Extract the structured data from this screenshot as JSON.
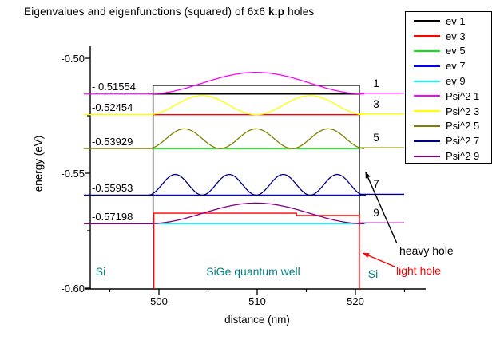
{
  "title": {
    "prefix": "Eigenvalues and eigenfunctions (squared) of 6x6 ",
    "bold": "k.p",
    "suffix": " holes",
    "full": "Eigenvalues and eigenfunctions (squared) of 6x6 k.p holes"
  },
  "axes": {
    "x": {
      "label": "distance (nm)",
      "tick_labels": [
        "500",
        "510",
        "520"
      ],
      "tick_values_nm": [
        500,
        510,
        520
      ],
      "minor_ticks_nm": [
        495,
        505,
        515,
        525
      ],
      "range_nm": [
        492.5,
        527.2
      ]
    },
    "y": {
      "label": "energy (eV)",
      "tick_labels": [
        "-0.50",
        "-0.55",
        "-0.60"
      ],
      "tick_values_eV": [
        -0.5,
        -0.55,
        -0.6
      ],
      "minor_ticks_eV": [
        -0.525,
        -0.575
      ],
      "range_eV": [
        -0.6,
        -0.495
      ]
    }
  },
  "regions": {
    "left": "Si",
    "center": "SiGe quantum well",
    "right": "Si"
  },
  "annotations": {
    "heavy_hole": "heavy hole",
    "light_hole": "light hole"
  },
  "legend": {
    "position": "top-right",
    "items": [
      {
        "label": "ev 1",
        "color": "#000000"
      },
      {
        "label": "ev 3",
        "color": "#ff0000"
      },
      {
        "label": "ev 5",
        "color": "#00ee00"
      },
      {
        "label": "ev 7",
        "color": "#0000ff"
      },
      {
        "label": "ev 9",
        "color": "#00ffff"
      },
      {
        "label": "Psi^2 1",
        "color": "#ff00ff"
      },
      {
        "label": "Psi^2 3",
        "color": "#ffff00"
      },
      {
        "label": "Psi^2 5",
        "color": "#808000"
      },
      {
        "label": "Psi^2 7",
        "color": "#000080"
      },
      {
        "label": "Psi^2 9",
        "color": "#800080"
      }
    ]
  },
  "chart_data": {
    "type": "line",
    "title": "Eigenvalues and eigenfunctions (squared) of 6x6 k.p holes",
    "xlabel": "distance (nm)",
    "ylabel": "energy (eV)",
    "xlim_nm": [
      492.5,
      527.2
    ],
    "ylim_eV": [
      -0.6,
      -0.495
    ],
    "grid": false,
    "well": {
      "barrier_material": "Si",
      "well_material": "SiGe quantum well",
      "well_x_nm": [
        499.4,
        520.4
      ]
    },
    "potential": {
      "heavy_hole": {
        "well_top_eV": -0.5118,
        "color": "#000000",
        "note": "heavy hole band edge (black outline)"
      },
      "light_hole": {
        "well_top_left_eV": -0.5674,
        "well_top_right_eV": -0.5684,
        "step_at_nm": 514,
        "color": "#ff0000",
        "note": "light hole band edge (red outline)"
      }
    },
    "states": [
      {
        "state": 1,
        "energy_eV": -0.51554,
        "energy_label": "- 0.51554",
        "ev_color": "#000000",
        "psi_color": "#ff00ff",
        "psi_humps": 1,
        "psi_amplitude_eV": 0.0094,
        "ev_overhang": false
      },
      {
        "state": 3,
        "energy_eV": -0.52454,
        "energy_label": "-0.52454",
        "ev_color": "#ff0000",
        "psi_color": "#ffff00",
        "psi_humps": 2,
        "psi_amplitude_eV": 0.0083,
        "ev_overhang": false
      },
      {
        "state": 5,
        "energy_eV": -0.53929,
        "energy_label": "-0.53929",
        "ev_color": "#00ee00",
        "psi_color": "#808000",
        "psi_humps": 3,
        "psi_amplitude_eV": 0.0086,
        "ev_overhang": false
      },
      {
        "state": 7,
        "energy_eV": -0.55953,
        "energy_label": "-0.55953",
        "ev_color": "#0000ff",
        "psi_color": "#000080",
        "psi_humps": 4,
        "psi_amplitude_eV": 0.009,
        "ev_overhang": true
      },
      {
        "state": 9,
        "energy_eV": -0.57198,
        "energy_label": "-0.57198",
        "ev_color": "#00ffff",
        "psi_color": "#800080",
        "psi_humps": 1,
        "psi_amplitude_eV": 0.009,
        "ev_overhang": true
      }
    ]
  }
}
